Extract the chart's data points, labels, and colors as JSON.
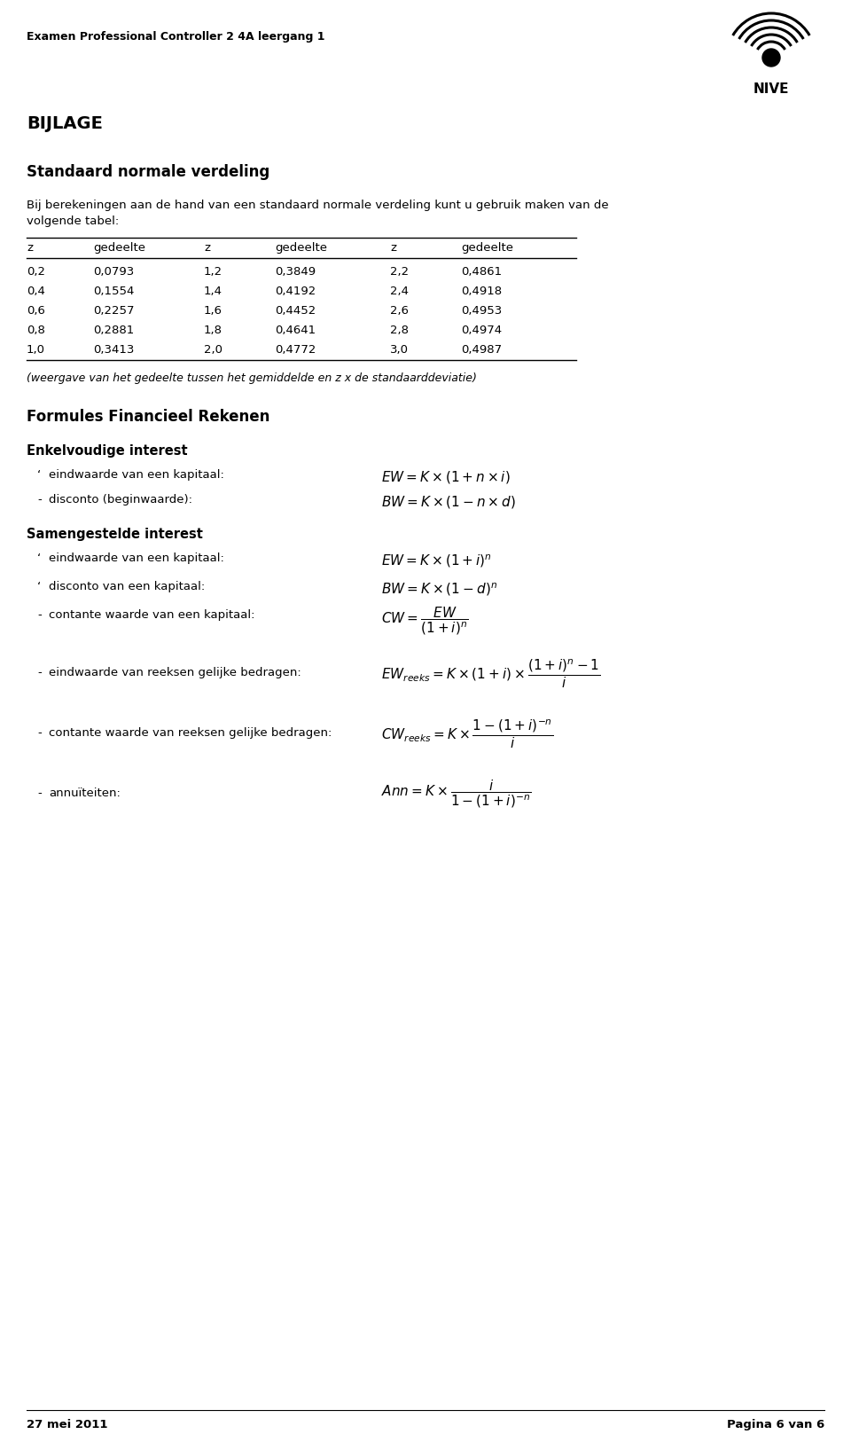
{
  "header_text": "Examen Professional Controller 2 4A leergang 1",
  "bijlage": "BIJLAGE",
  "section1_title": "Standaard normale verdeling",
  "section1_intro": "Bij berekeningen aan de hand van een standaard normale verdeling kunt u gebruik maken van de\nvolgende tabel:",
  "table_headers": [
    "z",
    "gedeelte",
    "z",
    "gedeelte",
    "z",
    "gedeelte"
  ],
  "table_data": [
    [
      "0,2",
      "0,0793",
      "1,2",
      "0,3849",
      "2,2",
      "0,4861"
    ],
    [
      "0,4",
      "0,1554",
      "1,4",
      "0,4192",
      "2,4",
      "0,4918"
    ],
    [
      "0,6",
      "0,2257",
      "1,6",
      "0,4452",
      "2,6",
      "0,4953"
    ],
    [
      "0,8",
      "0,2881",
      "1,8",
      "0,4641",
      "2,8",
      "0,4974"
    ],
    [
      "1,0",
      "0,3413",
      "2,0",
      "0,4772",
      "3,0",
      "0,4987"
    ]
  ],
  "table_note": "(weergave van het gedeelte tussen het gemiddelde en z x de standaarddeviatie)",
  "section2_title": "Formules Financieel Rekenen",
  "enkelvoudig_title": "Enkelvoudige interest",
  "enkelvoudig_items": [
    {
      "bullet": "-",
      "text": "eindwaarde van een kapitaal:"
    },
    {
      "bullet": "-",
      "text": "disconto (beginwaarde):"
    }
  ],
  "samengesteld_title": "Samengestelde interest",
  "samengesteld_items": [
    {
      "bullet": "-",
      "text": "eindwaarde van een kapitaal:"
    },
    {
      "bullet": "-",
      "text": "disconto van een kapitaal:"
    },
    {
      "bullet": "-",
      "text": "contante waarde van een kapitaal:"
    },
    {
      "bullet": "-",
      "text": "eindwaarde van reeksen gelijke bedragen:"
    },
    {
      "bullet": "-",
      "text": "contante waarde van reeksen gelijke bedragen:"
    },
    {
      "bullet": "-",
      "text": "annuïteiten:"
    }
  ],
  "footer_left": "27 mei 2011",
  "footer_right": "Pagina 6 van 6",
  "bg_color": "#ffffff",
  "text_color": "#000000"
}
